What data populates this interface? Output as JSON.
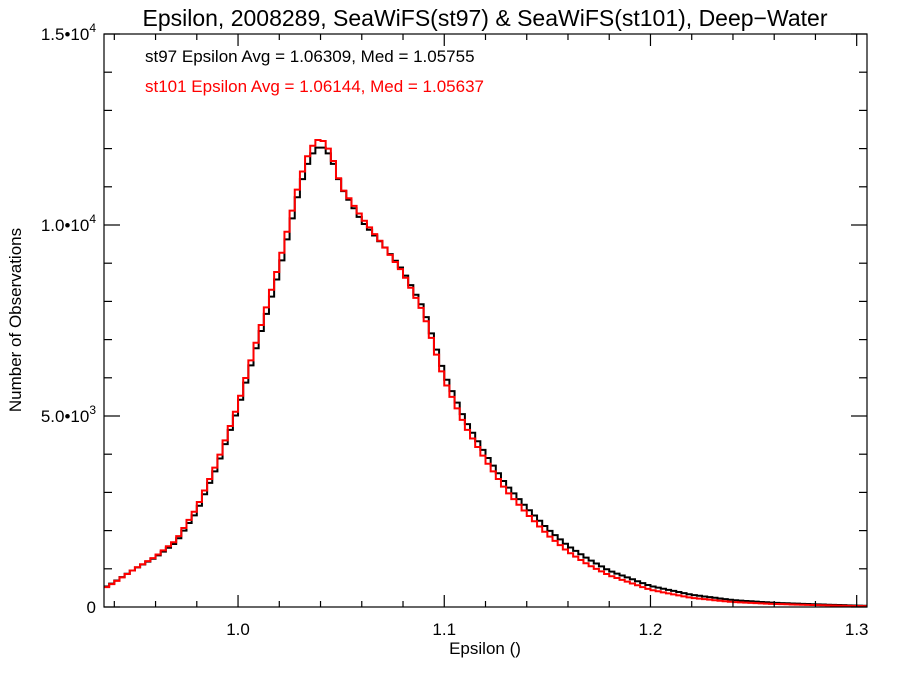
{
  "chart_data": {
    "type": "histogram-step",
    "title": "Epsilon, 2008289, SeaWiFS(st97) & SeaWiFS(st101), Deep−Water",
    "xlabel": "Epsilon ()",
    "ylabel": "Number of Observations",
    "xlim": [
      0.935,
      1.305
    ],
    "ylim": [
      0,
      15000
    ],
    "x_ticks": [
      {
        "value": 1.0,
        "label": "1.0"
      },
      {
        "value": 1.1,
        "label": "1.1"
      },
      {
        "value": 1.2,
        "label": "1.2"
      },
      {
        "value": 1.3,
        "label": "1.3"
      }
    ],
    "y_ticks": [
      {
        "value": 0,
        "mantissa": "0",
        "exponent": ""
      },
      {
        "value": 5000,
        "mantissa": "5.0•10",
        "exponent": "3"
      },
      {
        "value": 10000,
        "mantissa": "1.0•10",
        "exponent": "4"
      },
      {
        "value": 15000,
        "mantissa": "1.5•10",
        "exponent": "4"
      }
    ],
    "grid": false,
    "annotations": [
      {
        "text": "st97 Epsilon Avg = 1.06309, Med = 1.05755",
        "color": "#000000"
      },
      {
        "text": "st101 Epsilon Avg = 1.06144, Med = 1.05637",
        "color": "#ff0000"
      }
    ],
    "series": [
      {
        "color": "#000000",
        "x": [
          0.935,
          0.94,
          0.95,
          0.96,
          0.97,
          0.98,
          0.99,
          1.0,
          1.01,
          1.02,
          1.03,
          1.035,
          1.04,
          1.045,
          1.05,
          1.06,
          1.07,
          1.08,
          1.09,
          1.1,
          1.11,
          1.12,
          1.13,
          1.14,
          1.15,
          1.16,
          1.17,
          1.18,
          1.2,
          1.22,
          1.24,
          1.26,
          1.28,
          1.305
        ],
        "y": [
          500,
          650,
          1000,
          1300,
          1700,
          2500,
          3700,
          5200,
          7000,
          8800,
          11000,
          11800,
          12100,
          11800,
          11000,
          10100,
          9500,
          8800,
          7800,
          6100,
          4900,
          4000,
          3200,
          2600,
          2050,
          1600,
          1250,
          950,
          550,
          320,
          180,
          110,
          70,
          30
        ]
      },
      {
        "color": "#ff0000",
        "x": [
          0.935,
          0.94,
          0.95,
          0.96,
          0.97,
          0.98,
          0.99,
          1.0,
          1.01,
          1.02,
          1.03,
          1.035,
          1.04,
          1.045,
          1.05,
          1.06,
          1.07,
          1.08,
          1.09,
          1.1,
          1.11,
          1.12,
          1.13,
          1.14,
          1.15,
          1.16,
          1.17,
          1.18,
          1.2,
          1.22,
          1.24,
          1.26,
          1.28,
          1.305
        ],
        "y": [
          480,
          640,
          1000,
          1320,
          1750,
          2600,
          3800,
          5300,
          7150,
          9000,
          11200,
          12000,
          12300,
          11900,
          11000,
          10200,
          9500,
          8750,
          7700,
          5950,
          4750,
          3850,
          3050,
          2450,
          1900,
          1450,
          1100,
          830,
          450,
          240,
          130,
          80,
          50,
          20
        ]
      }
    ]
  }
}
